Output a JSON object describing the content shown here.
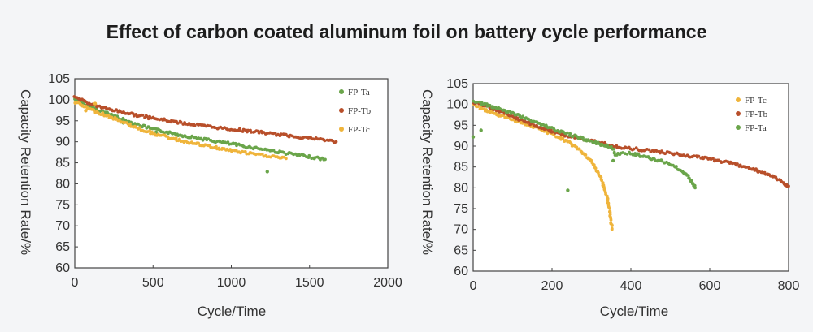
{
  "title": "Effect of carbon coated aluminum foil on battery cycle performance",
  "chart_data": [
    {
      "type": "scatter",
      "xlabel": "Cycle/Time",
      "ylabel": "Capacity Retention Rate/%",
      "xlim": [
        0,
        2000
      ],
      "ylim": [
        60,
        105
      ],
      "xticks": [
        "0",
        "500",
        "1000",
        "1500",
        "2000"
      ],
      "yticks": [
        "60",
        "65",
        "70",
        "75",
        "80",
        "85",
        "90",
        "95",
        "100",
        "105"
      ],
      "legend_position": "top-right",
      "series": [
        {
          "name": "FP-Ta",
          "color": "#6aa54a",
          "points": [
            [
              0,
              100.2
            ],
            [
              20,
              99.8
            ],
            [
              60,
              98.9
            ],
            [
              100,
              98.3
            ],
            [
              150,
              97.5
            ],
            [
              200,
              96.9
            ],
            [
              300,
              95.4
            ],
            [
              400,
              94.1
            ],
            [
              500,
              93.0
            ],
            [
              600,
              92.2
            ],
            [
              700,
              91.4
            ],
            [
              800,
              90.8
            ],
            [
              900,
              90.1
            ],
            [
              1000,
              89.5
            ],
            [
              1100,
              88.8
            ],
            [
              1200,
              88.3
            ],
            [
              1300,
              87.6
            ],
            [
              1400,
              87.0
            ],
            [
              1500,
              86.4
            ],
            [
              1550,
              86.1
            ],
            [
              1600,
              85.8
            ]
          ],
          "outliers": [
            [
              310,
              94.5
            ],
            [
              520,
              92.3
            ],
            [
              1230,
              82.9
            ]
          ]
        },
        {
          "name": "FP-Tb",
          "color": "#b84f2a",
          "points": [
            [
              0,
              100.6
            ],
            [
              50,
              99.9
            ],
            [
              100,
              99.0
            ],
            [
              200,
              97.9
            ],
            [
              300,
              97.1
            ],
            [
              400,
              96.3
            ],
            [
              500,
              95.6
            ],
            [
              600,
              95.0
            ],
            [
              700,
              94.4
            ],
            [
              800,
              93.9
            ],
            [
              900,
              93.4
            ],
            [
              1000,
              93.0
            ],
            [
              1100,
              92.6
            ],
            [
              1200,
              92.2
            ],
            [
              1300,
              91.7
            ],
            [
              1400,
              91.3
            ],
            [
              1500,
              90.9
            ],
            [
              1600,
              90.4
            ],
            [
              1670,
              90.0
            ]
          ]
        },
        {
          "name": "FP-Tc",
          "color": "#efb43b",
          "points": [
            [
              0,
              99.5
            ],
            [
              30,
              98.9
            ],
            [
              60,
              98.4
            ],
            [
              100,
              97.7
            ],
            [
              150,
              97.0
            ],
            [
              200,
              96.3
            ],
            [
              300,
              94.8
            ],
            [
              400,
              93.3
            ],
            [
              500,
              92.0
            ],
            [
              600,
              91.0
            ],
            [
              700,
              90.1
            ],
            [
              800,
              89.3
            ],
            [
              900,
              88.6
            ],
            [
              1000,
              87.9
            ],
            [
              1100,
              87.3
            ],
            [
              1200,
              86.8
            ],
            [
              1300,
              86.3
            ],
            [
              1350,
              86.0
            ]
          ],
          "outliers": [
            [
              70,
              97.4
            ],
            [
              130,
              99.1
            ]
          ]
        }
      ]
    },
    {
      "type": "scatter",
      "xlabel": "Cycle/Time",
      "ylabel": "Capacity Retention Rate/%",
      "xlim": [
        0,
        800
      ],
      "ylim": [
        60,
        105
      ],
      "xticks": [
        "0",
        "200",
        "400",
        "600",
        "800"
      ],
      "yticks": [
        "60",
        "65",
        "70",
        "75",
        "80",
        "85",
        "90",
        "95",
        "100",
        "105"
      ],
      "legend_position": "top-right",
      "series": [
        {
          "name": "FP-Tc",
          "color": "#efb43b",
          "points": [
            [
              0,
              100
            ],
            [
              20,
              99.0
            ],
            [
              40,
              98.3
            ],
            [
              60,
              97.6
            ],
            [
              100,
              96.4
            ],
            [
              150,
              94.8
            ],
            [
              200,
              92.9
            ],
            [
              230,
              91.5
            ],
            [
              260,
              89.8
            ],
            [
              280,
              88.3
            ],
            [
              300,
              86.2
            ],
            [
              315,
              84.0
            ],
            [
              325,
              82.0
            ],
            [
              333,
              80.0
            ],
            [
              340,
              77.5
            ],
            [
              345,
              75.0
            ],
            [
              349,
              72.5
            ],
            [
              352,
              70.0
            ]
          ]
        },
        {
          "name": "FP-Tb",
          "color": "#b84f2a",
          "points": [
            [
              0,
              100.3
            ],
            [
              30,
              99.9
            ],
            [
              60,
              98.6
            ],
            [
              100,
              97.0
            ],
            [
              150,
              95.2
            ],
            [
              200,
              93.5
            ],
            [
              250,
              92.2
            ],
            [
              300,
              91.2
            ],
            [
              340,
              90.4
            ],
            [
              370,
              89.8
            ],
            [
              400,
              89.4
            ],
            [
              450,
              88.9
            ],
            [
              500,
              88.3
            ],
            [
              550,
              87.6
            ],
            [
              600,
              86.9
            ],
            [
              650,
              86.0
            ],
            [
              700,
              84.8
            ],
            [
              740,
              83.5
            ],
            [
              770,
              82.2
            ],
            [
              790,
              81.0
            ],
            [
              800,
              80.4
            ]
          ]
        },
        {
          "name": "FP-Ta",
          "color": "#6aa54a",
          "points": [
            [
              0,
              100.5
            ],
            [
              20,
              100.3
            ],
            [
              40,
              99.6
            ],
            [
              80,
              98.5
            ],
            [
              120,
              97.2
            ],
            [
              160,
              95.7
            ],
            [
              200,
              94.2
            ],
            [
              250,
              92.6
            ],
            [
              300,
              91.1
            ],
            [
              340,
              90.0
            ],
            [
              355,
              89.4
            ],
            [
              360,
              88.0
            ],
            [
              380,
              88.4
            ],
            [
              400,
              88.3
            ],
            [
              430,
              87.6
            ],
            [
              460,
              86.9
            ],
            [
              490,
              86.0
            ],
            [
              510,
              85.2
            ],
            [
              530,
              84.0
            ],
            [
              545,
              82.8
            ],
            [
              555,
              81.5
            ],
            [
              563,
              80.0
            ]
          ],
          "outliers": [
            [
              0,
              92.2
            ],
            [
              20,
              93.8
            ],
            [
              240,
              79.4
            ],
            [
              355,
              86.5
            ]
          ]
        }
      ]
    }
  ]
}
